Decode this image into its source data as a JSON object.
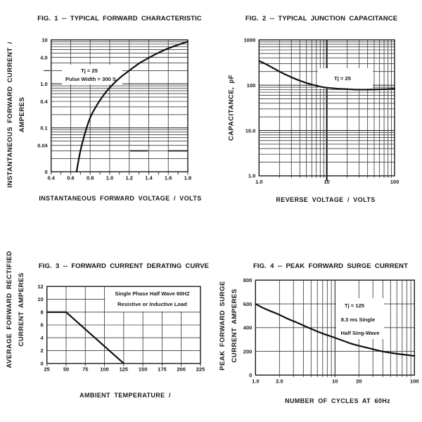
{
  "palette": {
    "ink": "#1a1a1a",
    "grid_minor": "#3d3d3d",
    "grid_major": "#222222",
    "background": "#ffffff"
  },
  "chart_data": [
    {
      "type": "line",
      "title": "FIG. 1 --  TYPICAL FORWARD CHARACTERISTIC",
      "xlabel": "INSTANTANEOUS FORWARD VOLTAGE / VOLTS",
      "ylabel": [
        "INSTANTANEOUS FORWARD CURRENT /",
        "AMPERES"
      ],
      "x_axis": {
        "scale": "linear",
        "min": 0.4,
        "max": 1.8,
        "grid": "ticks",
        "ticks": [
          {
            "v": 0.4,
            "label": "0.4"
          },
          {
            "v": 0.6,
            "label": "0.6"
          },
          {
            "v": 0.8,
            "label": "0.8"
          },
          {
            "v": 1.0,
            "label": "1.0"
          },
          {
            "v": 1.2,
            "label": "1.2"
          },
          {
            "v": 1.4,
            "label": "1.4"
          },
          {
            "v": 1.6,
            "label": "1.6"
          },
          {
            "v": 1.8,
            "label": "1.8"
          }
        ]
      },
      "y_axis": {
        "scale": "log",
        "min": 0.01,
        "max": 10,
        "grid": "log",
        "ticks": [
          {
            "v": 10,
            "label": "10"
          },
          {
            "v": 4,
            "label": "4.0"
          },
          {
            "v": 1,
            "label": "1.0"
          },
          {
            "v": 0.4,
            "label": "0.4"
          },
          {
            "v": 0.1,
            "label": "0.1"
          },
          {
            "v": 0.04,
            "label": "0.04"
          },
          {
            "v": 0.01,
            "label": "0"
          }
        ]
      },
      "annotation": {
        "lines": [
          "Tj = 25",
          "Pulse Width = 300 S"
        ]
      },
      "series": [
        {
          "name": "forward-characteristic-curve",
          "points": [
            [
              0.66,
              0.01
            ],
            [
              0.7,
              0.03
            ],
            [
              0.75,
              0.08
            ],
            [
              0.8,
              0.17
            ],
            [
              0.85,
              0.28
            ],
            [
              0.9,
              0.42
            ],
            [
              0.95,
              0.6
            ],
            [
              1.0,
              0.82
            ],
            [
              1.1,
              1.35
            ],
            [
              1.2,
              2.0
            ],
            [
              1.3,
              2.9
            ],
            [
              1.4,
              3.9
            ],
            [
              1.5,
              5.1
            ],
            [
              1.6,
              6.4
            ],
            [
              1.7,
              7.7
            ],
            [
              1.8,
              9.2
            ]
          ]
        }
      ]
    },
    {
      "type": "line",
      "title": "FIG. 2 --  TYPICAL JUNCTION CAPACITANCE",
      "xlabel": "REVERSE VOLTAGE / VOLTS",
      "ylabel": "CAPACITANCE, pF",
      "x_axis": {
        "scale": "log",
        "min": 1,
        "max": 100,
        "grid": "log",
        "ticks": [
          {
            "v": 1,
            "label": "1.0"
          },
          {
            "v": 10,
            "label": "10"
          },
          {
            "v": 100,
            "label": "100"
          }
        ]
      },
      "y_axis": {
        "scale": "log",
        "min": 1,
        "max": 1000,
        "grid": "log",
        "ticks": [
          {
            "v": 1000,
            "label": "1000"
          },
          {
            "v": 100,
            "label": "100"
          },
          {
            "v": 10,
            "label": "10.0"
          },
          {
            "v": 1,
            "label": "1.0"
          }
        ]
      },
      "annotation": {
        "lines": [
          "Tj = 25"
        ]
      },
      "series": [
        {
          "name": "junction-capacitance-curve",
          "points": [
            [
              1,
              345
            ],
            [
              1.3,
              285
            ],
            [
              1.6,
              240
            ],
            [
              2,
              200
            ],
            [
              2.5,
              170
            ],
            [
              3,
              150
            ],
            [
              4,
              126
            ],
            [
              5,
              112
            ],
            [
              6.5,
              100
            ],
            [
              8,
              93
            ],
            [
              10,
              88
            ],
            [
              13,
              85
            ],
            [
              16,
              83
            ],
            [
              20,
              82
            ],
            [
              27,
              80
            ],
            [
              40,
              80
            ],
            [
              60,
              81
            ],
            [
              80,
              82
            ],
            [
              100,
              84
            ]
          ]
        }
      ]
    },
    {
      "type": "line",
      "title": "FIG. 3 --  FORWARD CURRENT DERATING CURVE",
      "xlabel": "AMBIENT TEMPERATURE /",
      "ylabel": [
        "AVERAGE FORWARD RECTIFIED",
        "CURRENT AMPERES"
      ],
      "x_axis": {
        "scale": "linear",
        "min": 25,
        "max": 225,
        "grid": "ticks",
        "ticks": [
          {
            "v": 25,
            "label": "25"
          },
          {
            "v": 50,
            "label": "50"
          },
          {
            "v": 75,
            "label": "75"
          },
          {
            "v": 100,
            "label": "100"
          },
          {
            "v": 125,
            "label": "125"
          },
          {
            "v": 150,
            "label": "150"
          },
          {
            "v": 175,
            "label": "175"
          },
          {
            "v": 200,
            "label": "200"
          },
          {
            "v": 225,
            "label": "225"
          }
        ]
      },
      "y_axis": {
        "scale": "linear",
        "min": 0,
        "max": 12,
        "grid": "ticks",
        "ticks": [
          {
            "v": 12,
            "label": "12"
          },
          {
            "v": 10,
            "label": "10"
          },
          {
            "v": 8,
            "label": "8"
          },
          {
            "v": 6,
            "label": "6"
          },
          {
            "v": 4,
            "label": "4"
          },
          {
            "v": 2,
            "label": "2"
          },
          {
            "v": 0,
            "label": "0"
          }
        ]
      },
      "annotation": {
        "lines": [
          "Single Phase Half Wave 60HZ",
          "Resistive or Inductive Load"
        ]
      },
      "series": [
        {
          "name": "derating-curve",
          "points": [
            [
              25,
              8
            ],
            [
              50,
              8
            ],
            [
              125,
              0
            ]
          ]
        }
      ]
    },
    {
      "type": "line",
      "title": "FIG. 4 --  PEAK FORWARD SURGE CURRENT",
      "xlabel": "NUMBER OF CYCLES AT 60Hz",
      "ylabel": [
        "PEAK FORWARD SURGE",
        "CURRENT AMPERES"
      ],
      "x_axis": {
        "scale": "log",
        "min": 1,
        "max": 100,
        "grid": "log",
        "ticks": [
          {
            "v": 1,
            "label": "1.0"
          },
          {
            "v": 2,
            "label": "2.0"
          },
          {
            "v": 10,
            "label": "10"
          },
          {
            "v": 20,
            "label": "20"
          },
          {
            "v": 100,
            "label": "100"
          }
        ]
      },
      "y_axis": {
        "scale": "linear",
        "min": 0,
        "max": 800,
        "grid": "ticks",
        "ticks": [
          {
            "v": 800,
            "label": "800"
          },
          {
            "v": 600,
            "label": "600"
          },
          {
            "v": 400,
            "label": "400"
          },
          {
            "v": 200,
            "label": "200"
          },
          {
            "v": 0,
            "label": "0"
          }
        ]
      },
      "annotation": {
        "lines": [
          "Tj = 125",
          "8.3 ms Single",
          "Half Sing-Wave"
        ]
      },
      "series": [
        {
          "name": "surge-current-curve",
          "points": [
            [
              1,
              600
            ],
            [
              1.3,
              560
            ],
            [
              1.7,
              528
            ],
            [
              2,
              508
            ],
            [
              2.6,
              472
            ],
            [
              3.3,
              443
            ],
            [
              4.2,
              412
            ],
            [
              5.5,
              378
            ],
            [
              7,
              350
            ],
            [
              9,
              325
            ],
            [
              12,
              295
            ],
            [
              16,
              265
            ],
            [
              20,
              247
            ],
            [
              27,
              226
            ],
            [
              36,
              205
            ],
            [
              50,
              188
            ],
            [
              70,
              174
            ],
            [
              100,
              162
            ]
          ]
        }
      ]
    }
  ]
}
